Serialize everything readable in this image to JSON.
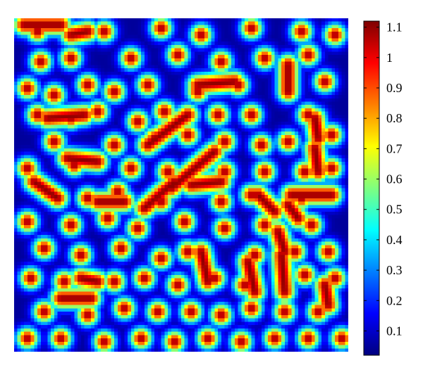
{
  "chart_data": {
    "type": "heatmap",
    "title": "",
    "xlabel": "",
    "ylabel": "",
    "grid": false,
    "colormap": "jet",
    "colormap_stops": [
      "#00007f",
      "#0000ff",
      "#007fff",
      "#00ffff",
      "#7fff7f",
      "#ffff00",
      "#ff7f00",
      "#ff0000",
      "#7f0000"
    ],
    "value_range": [
      0.02,
      1.12
    ],
    "colorbar": {
      "position": "right",
      "ticks": [
        {
          "value": 0.1,
          "label": "0.1"
        },
        {
          "value": 0.2,
          "label": "0.2"
        },
        {
          "value": 0.3,
          "label": "0.3"
        },
        {
          "value": 0.4,
          "label": "0.4"
        },
        {
          "value": 0.5,
          "label": "0.5"
        },
        {
          "value": 0.6,
          "label": "0.6"
        },
        {
          "value": 0.7,
          "label": "0.7"
        },
        {
          "value": 0.8,
          "label": "0.8"
        },
        {
          "value": 0.9,
          "label": "0.9"
        },
        {
          "value": 1.0,
          "label": "1"
        },
        {
          "value": 1.1,
          "label": "1.1"
        }
      ]
    },
    "field": {
      "description_of_pattern": "mixed spots and short stripes (Turing-type pattern); background level ~0.05, peak level ~1.1",
      "grid_resolution": 100,
      "background_value": 0.05,
      "peak_value": 1.1,
      "spots": [
        [
          0.07,
          0.04
        ],
        [
          0.27,
          0.04
        ],
        [
          0.44,
          0.03
        ],
        [
          0.56,
          0.05
        ],
        [
          0.71,
          0.03
        ],
        [
          0.86,
          0.04
        ],
        [
          0.08,
          0.13
        ],
        [
          0.17,
          0.12
        ],
        [
          0.35,
          0.12
        ],
        [
          0.49,
          0.11
        ],
        [
          0.62,
          0.13
        ],
        [
          0.75,
          0.12
        ],
        [
          0.88,
          0.11
        ],
        [
          0.96,
          0.05
        ],
        [
          0.04,
          0.21
        ],
        [
          0.12,
          0.23
        ],
        [
          0.22,
          0.2
        ],
        [
          0.3,
          0.22
        ],
        [
          0.4,
          0.2
        ],
        [
          0.55,
          0.22
        ],
        [
          0.67,
          0.2
        ],
        [
          0.82,
          0.2
        ],
        [
          0.93,
          0.19
        ],
        [
          0.07,
          0.29
        ],
        [
          0.17,
          0.3
        ],
        [
          0.25,
          0.28
        ],
        [
          0.37,
          0.31
        ],
        [
          0.45,
          0.28
        ],
        [
          0.61,
          0.29
        ],
        [
          0.71,
          0.29
        ],
        [
          0.88,
          0.29
        ],
        [
          0.12,
          0.37
        ],
        [
          0.3,
          0.38
        ],
        [
          0.42,
          0.36
        ],
        [
          0.52,
          0.35
        ],
        [
          0.63,
          0.37
        ],
        [
          0.74,
          0.38
        ],
        [
          0.82,
          0.37
        ],
        [
          0.95,
          0.35
        ],
        [
          0.04,
          0.45
        ],
        [
          0.18,
          0.44
        ],
        [
          0.35,
          0.45
        ],
        [
          0.46,
          0.46
        ],
        [
          0.63,
          0.46
        ],
        [
          0.75,
          0.46
        ],
        [
          0.87,
          0.46
        ],
        [
          0.95,
          0.45
        ],
        [
          0.1,
          0.52
        ],
        [
          0.22,
          0.54
        ],
        [
          0.31,
          0.52
        ],
        [
          0.44,
          0.55
        ],
        [
          0.62,
          0.55
        ],
        [
          0.71,
          0.53
        ],
        [
          0.86,
          0.54
        ],
        [
          0.04,
          0.61
        ],
        [
          0.17,
          0.62
        ],
        [
          0.28,
          0.6
        ],
        [
          0.37,
          0.63
        ],
        [
          0.51,
          0.61
        ],
        [
          0.63,
          0.63
        ],
        [
          0.75,
          0.62
        ],
        [
          0.89,
          0.62
        ],
        [
          0.09,
          0.69
        ],
        [
          0.2,
          0.71
        ],
        [
          0.32,
          0.69
        ],
        [
          0.44,
          0.72
        ],
        [
          0.52,
          0.7
        ],
        [
          0.72,
          0.71
        ],
        [
          0.84,
          0.7
        ],
        [
          0.94,
          0.7
        ],
        [
          0.05,
          0.78
        ],
        [
          0.15,
          0.79
        ],
        [
          0.3,
          0.79
        ],
        [
          0.39,
          0.78
        ],
        [
          0.49,
          0.8
        ],
        [
          0.6,
          0.78
        ],
        [
          0.69,
          0.8
        ],
        [
          0.87,
          0.77
        ],
        [
          0.96,
          0.78
        ],
        [
          0.09,
          0.88
        ],
        [
          0.22,
          0.89
        ],
        [
          0.33,
          0.87
        ],
        [
          0.43,
          0.88
        ],
        [
          0.53,
          0.88
        ],
        [
          0.62,
          0.89
        ],
        [
          0.71,
          0.87
        ],
        [
          0.81,
          0.88
        ],
        [
          0.91,
          0.88
        ],
        [
          0.04,
          0.96
        ],
        [
          0.14,
          0.96
        ],
        [
          0.27,
          0.97
        ],
        [
          0.38,
          0.96
        ],
        [
          0.48,
          0.97
        ],
        [
          0.58,
          0.96
        ],
        [
          0.68,
          0.97
        ],
        [
          0.78,
          0.96
        ],
        [
          0.88,
          0.96
        ],
        [
          0.98,
          0.96
        ]
      ],
      "stripes": [
        [
          0.03,
          0.02,
          0.14,
          0.02
        ],
        [
          0.17,
          0.05,
          0.22,
          0.04
        ],
        [
          0.82,
          0.14,
          0.82,
          0.22
        ],
        [
          0.55,
          0.2,
          0.66,
          0.19
        ],
        [
          0.1,
          0.3,
          0.21,
          0.29
        ],
        [
          0.4,
          0.38,
          0.52,
          0.29
        ],
        [
          0.47,
          0.51,
          0.6,
          0.4
        ],
        [
          0.39,
          0.57,
          0.48,
          0.49
        ],
        [
          0.53,
          0.5,
          0.62,
          0.49
        ],
        [
          0.73,
          0.53,
          0.78,
          0.58
        ],
        [
          0.83,
          0.53,
          0.95,
          0.53
        ],
        [
          0.25,
          0.55,
          0.33,
          0.55
        ],
        [
          0.16,
          0.42,
          0.25,
          0.43
        ],
        [
          0.06,
          0.49,
          0.13,
          0.54
        ],
        [
          0.82,
          0.56,
          0.85,
          0.6
        ],
        [
          0.79,
          0.64,
          0.81,
          0.7
        ],
        [
          0.2,
          0.78,
          0.25,
          0.79
        ],
        [
          0.56,
          0.7,
          0.58,
          0.79
        ],
        [
          0.7,
          0.73,
          0.72,
          0.82
        ],
        [
          0.8,
          0.71,
          0.81,
          0.82
        ],
        [
          0.14,
          0.84,
          0.23,
          0.84
        ],
        [
          0.9,
          0.39,
          0.91,
          0.46
        ],
        [
          0.93,
          0.8,
          0.94,
          0.86
        ],
        [
          0.9,
          0.3,
          0.91,
          0.36
        ]
      ]
    }
  }
}
